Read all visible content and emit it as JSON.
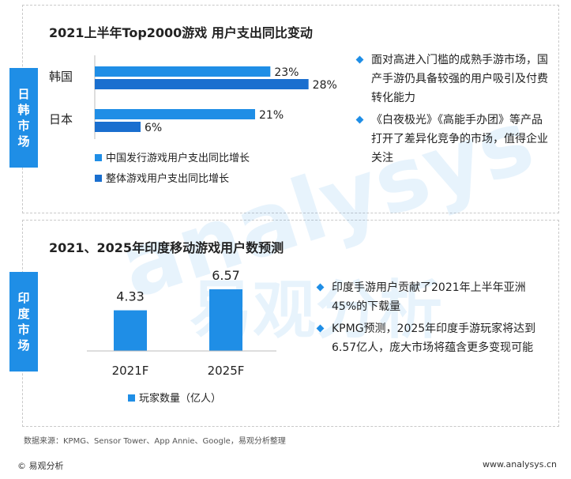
{
  "colors": {
    "accent": "#1f8ee6",
    "dark_accent": "#1a6fcf"
  },
  "top_section": {
    "tab_label": [
      "日",
      "韩",
      "市",
      "场"
    ],
    "title": "2021上半年Top2000游戏 用户支出同比变动",
    "bullets": [
      "面对高进入门槛的成熟手游市场，国产手游仍具备较强的用户吸引及付费转化能力",
      "《白夜极光》《高能手办团》等产品打开了差异化竞争的市场，值得企业关注"
    ]
  },
  "bottom_section": {
    "tab_label": [
      "印",
      "度",
      "市",
      "场"
    ],
    "title": "2021、2025年印度移动游戏用户数预测",
    "bullets": [
      "印度手游用户贡献了2021年上半年亚洲45%的下载量",
      "KPMG预测，2025年印度手游玩家将达到6.57亿人，庞大市场将蕴含更多变现可能"
    ]
  },
  "chart_data": [
    {
      "type": "bar",
      "orientation": "horizontal",
      "categories": [
        "韩国",
        "日本"
      ],
      "series": [
        {
          "name": "中国发行游戏用户支出同比增长",
          "values": [
            23,
            21
          ],
          "labels": [
            "23%",
            "21%"
          ],
          "color": "#1f8ee6"
        },
        {
          "name": "整体游戏用户支出同比增长",
          "values": [
            28,
            6
          ],
          "labels": [
            "28%",
            "6%"
          ],
          "color": "#1a6fcf"
        }
      ],
      "xlim": [
        0,
        30
      ],
      "legend_placement": "bottom"
    },
    {
      "type": "bar",
      "orientation": "vertical",
      "categories": [
        "2021F",
        "2025F"
      ],
      "series": [
        {
          "name": "玩家数量（亿人）",
          "values": [
            4.33,
            6.57
          ],
          "labels": [
            "4.33",
            "6.57"
          ],
          "color": "#1f8ee6"
        }
      ],
      "ylim": [
        0,
        8
      ],
      "legend_placement": "bottom"
    }
  ],
  "watermark": {
    "text1": "analysys",
    "text2": "易观分析"
  },
  "source": "数据来源：KPMG、Sensor Tower、App Annie、Google，易观分析整理",
  "footer": {
    "left": "© 易观分析",
    "right": "www.analysys.cn"
  }
}
